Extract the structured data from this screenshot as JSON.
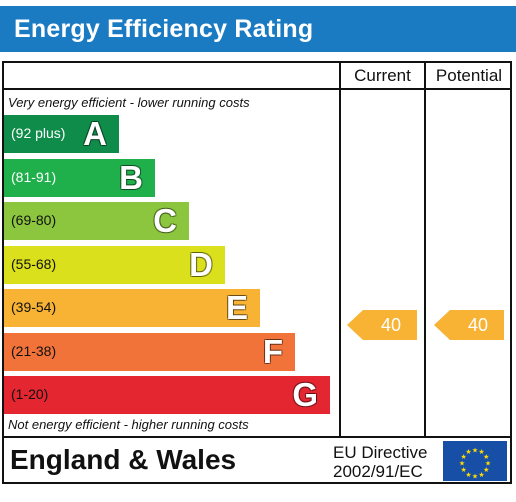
{
  "header": {
    "title": "Energy Efficiency Rating"
  },
  "columns": {
    "current": "Current",
    "potential": "Potential"
  },
  "notes": {
    "top": "Very energy efficient - lower running costs",
    "bottom": "Not energy efficient - higher running costs"
  },
  "bands": [
    {
      "range": "(92 plus)",
      "letter": "A",
      "color": "#0f8c4a",
      "text_color": "#ffffff"
    },
    {
      "range": "(81-91)",
      "letter": "B",
      "color": "#1fb04b",
      "text_color": "#ffffff"
    },
    {
      "range": "(69-80)",
      "letter": "C",
      "color": "#8cc63f",
      "text_color": "#111111"
    },
    {
      "range": "(55-68)",
      "letter": "D",
      "color": "#dbe01c",
      "text_color": "#111111"
    },
    {
      "range": "(39-54)",
      "letter": "E",
      "color": "#f8b234",
      "text_color": "#111111"
    },
    {
      "range": "(21-38)",
      "letter": "F",
      "color": "#f1733a",
      "text_color": "#111111"
    },
    {
      "range": "(1-20)",
      "letter": "G",
      "color": "#e32630",
      "text_color": "#111111"
    }
  ],
  "ratings": {
    "current": "40",
    "potential": "40",
    "color": "#f8b234"
  },
  "footer": {
    "country": "England & Wales",
    "directive_line1": "EU Directive",
    "directive_line2": "2002/91/EC",
    "flag_icon": "eu-flag-icon"
  }
}
